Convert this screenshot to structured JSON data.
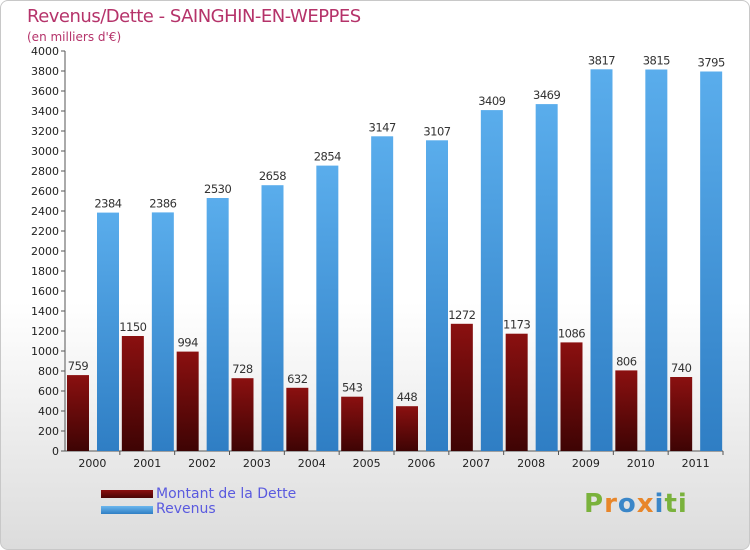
{
  "chart_data": {
    "type": "bar",
    "title": "Revenus/Dette - SAINGHIN-EN-WEPPES",
    "subtitle": "(en milliers d'€)",
    "categories": [
      "2000",
      "2001",
      "2002",
      "2003",
      "2004",
      "2005",
      "2006",
      "2007",
      "2008",
      "2009",
      "2010",
      "2011"
    ],
    "series": [
      {
        "name": "Montant de la Dette",
        "color": "#8b1010",
        "values": [
          759,
          1150,
          994,
          728,
          632,
          543,
          448,
          1272,
          1173,
          1086,
          806,
          740
        ]
      },
      {
        "name": "Revenus",
        "color": "#4a9fe0",
        "values": [
          2384,
          2386,
          2530,
          2658,
          2854,
          3147,
          3107,
          3409,
          3469,
          3817,
          3815,
          3795
        ]
      }
    ],
    "ylim": [
      0,
      4000
    ],
    "ytick_step": 200,
    "grid": false,
    "legend_position": "bottom-left"
  },
  "logo": {
    "letters": [
      "P",
      "r",
      "o",
      "x",
      "i",
      "t",
      "i"
    ],
    "colors": [
      "#7ab23c",
      "#e8862a",
      "#3a86c8",
      "#e8862a",
      "#3a86c8",
      "#7ab23c",
      "#7ab23c"
    ]
  }
}
